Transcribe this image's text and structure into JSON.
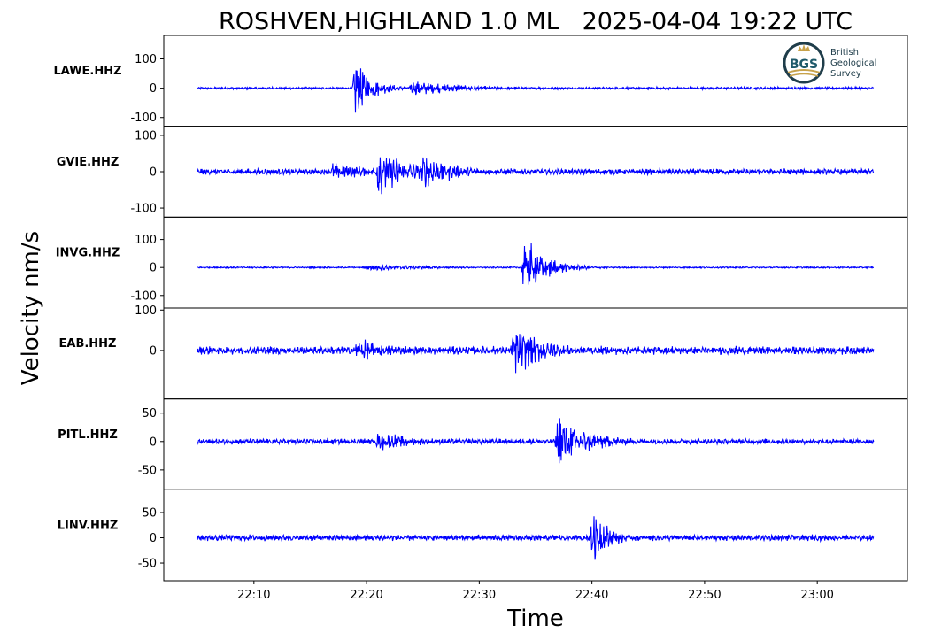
{
  "chart_data": {
    "type": "line",
    "title": "ROSHVEN,HIGHLAND 1.0 ML   2025-04-04 19:22 UTC",
    "xlabel": "Time",
    "ylabel": "Velocity nm/s",
    "x_range_minutes": [
      "22:05",
      "23:05"
    ],
    "xlim": [
      "22:02",
      "23:08"
    ],
    "x_ticks": [
      "22:10",
      "22:20",
      "22:30",
      "22:40",
      "22:50",
      "23:00"
    ],
    "line_color": "#0000ff",
    "grid": false,
    "legend": "none",
    "panels": [
      {
        "station": "LAWE.HHZ",
        "ylim": [
          -130,
          180
        ],
        "y_ticks": [
          100,
          0,
          -100
        ],
        "y_tick_labels": [
          "100",
          "0",
          "-100"
        ],
        "noise": 6,
        "bursts": [
          {
            "t": "22:19",
            "amp": 160,
            "dur_min": 1.5
          },
          {
            "t": "22:24",
            "amp": 40,
            "dur_min": 5
          }
        ]
      },
      {
        "station": "GVIE.HHZ",
        "ylim": [
          -125,
          125
        ],
        "y_ticks": [
          100,
          0,
          -100
        ],
        "y_tick_labels": [
          "100",
          "0",
          "-100"
        ],
        "noise": 12,
        "bursts": [
          {
            "t": "22:17",
            "amp": 40,
            "dur_min": 4
          },
          {
            "t": "22:21",
            "amp": 110,
            "dur_min": 3
          },
          {
            "t": "22:25",
            "amp": 75,
            "dur_min": 3
          }
        ]
      },
      {
        "station": "INVG.HHZ",
        "ylim": [
          -145,
          180
        ],
        "y_ticks": [
          100,
          0,
          -100
        ],
        "y_tick_labels": [
          "100",
          "0",
          "-100"
        ],
        "noise": 4,
        "bursts": [
          {
            "t": "22:20",
            "amp": 20,
            "dur_min": 6
          },
          {
            "t": "22:34",
            "amp": 160,
            "dur_min": 2
          }
        ]
      },
      {
        "station": "EAB.HHZ",
        "ylim": [
          -120,
          105
        ],
        "y_ticks": [
          100,
          0
        ],
        "y_tick_labels": [
          "100",
          "0"
        ],
        "noise": 15,
        "bursts": [
          {
            "t": "22:19",
            "amp": 45,
            "dur_min": 4
          },
          {
            "t": "22:33",
            "amp": 95,
            "dur_min": 3
          }
        ]
      },
      {
        "station": "PITL.HHZ",
        "ylim": [
          -85,
          75
        ],
        "y_ticks": [
          50,
          0,
          -50
        ],
        "y_tick_labels": [
          "50",
          "0",
          "-50"
        ],
        "noise": 7,
        "bursts": [
          {
            "t": "22:21",
            "amp": 25,
            "dur_min": 4
          },
          {
            "t": "22:37",
            "amp": 70,
            "dur_min": 3
          }
        ]
      },
      {
        "station": "LINV.HHZ",
        "ylim": [
          -85,
          95
        ],
        "y_ticks": [
          50,
          0,
          -50
        ],
        "y_tick_labels": [
          "50",
          "0",
          "-50"
        ],
        "noise": 9,
        "bursts": [
          {
            "t": "22:40",
            "amp": 85,
            "dur_min": 1.5
          }
        ]
      }
    ]
  },
  "logo": {
    "name": "bgs-logo",
    "abbrev": "BGS",
    "lines": [
      "British",
      "Geological",
      "Survey"
    ],
    "colors": {
      "ring": "#1f3d4a",
      "accent": "#c8a24a",
      "text": "#1f3d4a"
    }
  }
}
